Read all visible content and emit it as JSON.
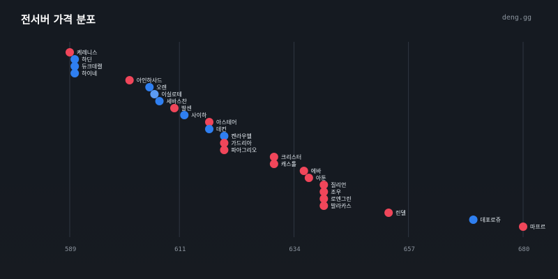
{
  "header": {
    "title": "전서버 가격 분포",
    "brand": "deng.gg"
  },
  "colors": {
    "background": "#161b22",
    "grid": "#3a4250",
    "red": "#f0465a",
    "blue": "#2f7ff0",
    "lightblue": "#5b9bf5"
  },
  "chart_data": {
    "type": "scatter",
    "title": "전서버 가격 분포",
    "xlabel": "",
    "ylabel": "",
    "xlim": [
      589,
      680
    ],
    "x_ticks": [
      589,
      611,
      634,
      657,
      680
    ],
    "grid": "vertical",
    "series": [
      {
        "points": [
          {
            "label": "케레니스",
            "x": 589,
            "color": "red"
          },
          {
            "label": "하딘",
            "x": 590,
            "color": "blue"
          },
          {
            "label": "듀크데켈",
            "x": 590,
            "color": "blue"
          },
          {
            "label": "하이네",
            "x": 590,
            "color": "blue"
          },
          {
            "label": "아인하사드",
            "x": 601,
            "color": "red"
          },
          {
            "label": "오렌",
            "x": 605,
            "color": "blue"
          },
          {
            "label": "이실로테",
            "x": 606,
            "color": "lightblue"
          },
          {
            "label": "세바스찬",
            "x": 607,
            "color": "blue"
          },
          {
            "label": "발센",
            "x": 610,
            "color": "red"
          },
          {
            "label": "사이하",
            "x": 612,
            "color": "blue"
          },
          {
            "label": "아스테어",
            "x": 617,
            "color": "red"
          },
          {
            "label": "데컨",
            "x": 617,
            "color": "blue"
          },
          {
            "label": "켄라우헬",
            "x": 620,
            "color": "blue"
          },
          {
            "label": "가드리아",
            "x": 620,
            "color": "red"
          },
          {
            "label": "파아그리오",
            "x": 620,
            "color": "red"
          },
          {
            "label": "크리스터",
            "x": 630,
            "color": "red"
          },
          {
            "label": "캐스톨",
            "x": 630,
            "color": "red"
          },
          {
            "label": "에바",
            "x": 636,
            "color": "red"
          },
          {
            "label": "아툰",
            "x": 637,
            "color": "red"
          },
          {
            "label": "질리언",
            "x": 640,
            "color": "red"
          },
          {
            "label": "조우",
            "x": 640,
            "color": "red"
          },
          {
            "label": "로엔그린",
            "x": 640,
            "color": "red"
          },
          {
            "label": "발라카스",
            "x": 640,
            "color": "red"
          },
          {
            "label": "린델",
            "x": 653,
            "color": "red"
          },
          {
            "label": "데포로쥬",
            "x": 670,
            "color": "blue"
          },
          {
            "label": "마프르",
            "x": 680,
            "color": "red"
          }
        ]
      }
    ]
  }
}
